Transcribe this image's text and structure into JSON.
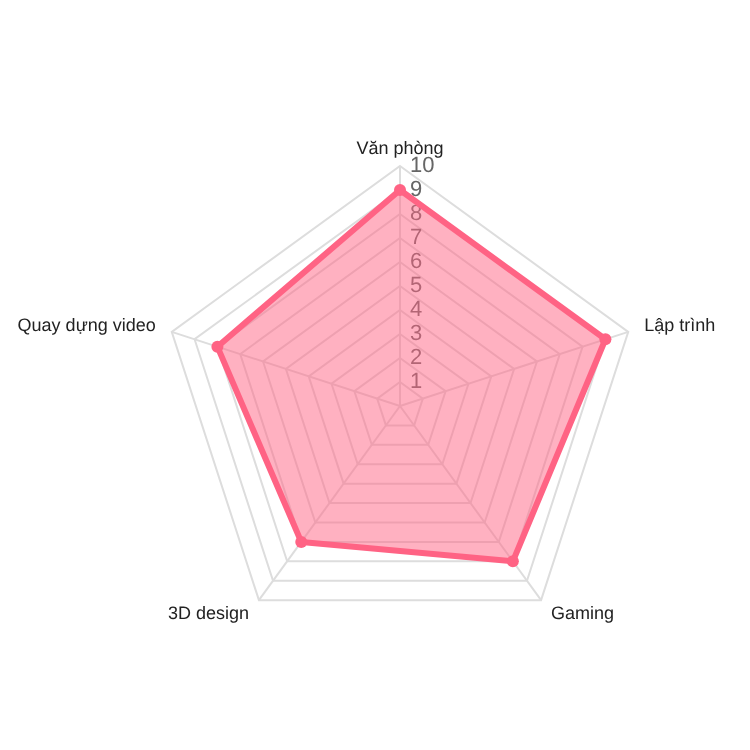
{
  "chart_data": {
    "type": "radar",
    "categories": [
      "Văn phòng",
      "Lập trình",
      "Gaming",
      "3D design",
      "Quay dựng video"
    ],
    "series": [
      {
        "color": "#ff6384",
        "values": [
          9,
          9,
          8,
          7,
          8
        ]
      }
    ],
    "ylim": [
      0,
      10
    ],
    "yticks": [
      1,
      2,
      3,
      4,
      5,
      6,
      7,
      8,
      9,
      10
    ],
    "grid": true,
    "marker": "circle"
  }
}
